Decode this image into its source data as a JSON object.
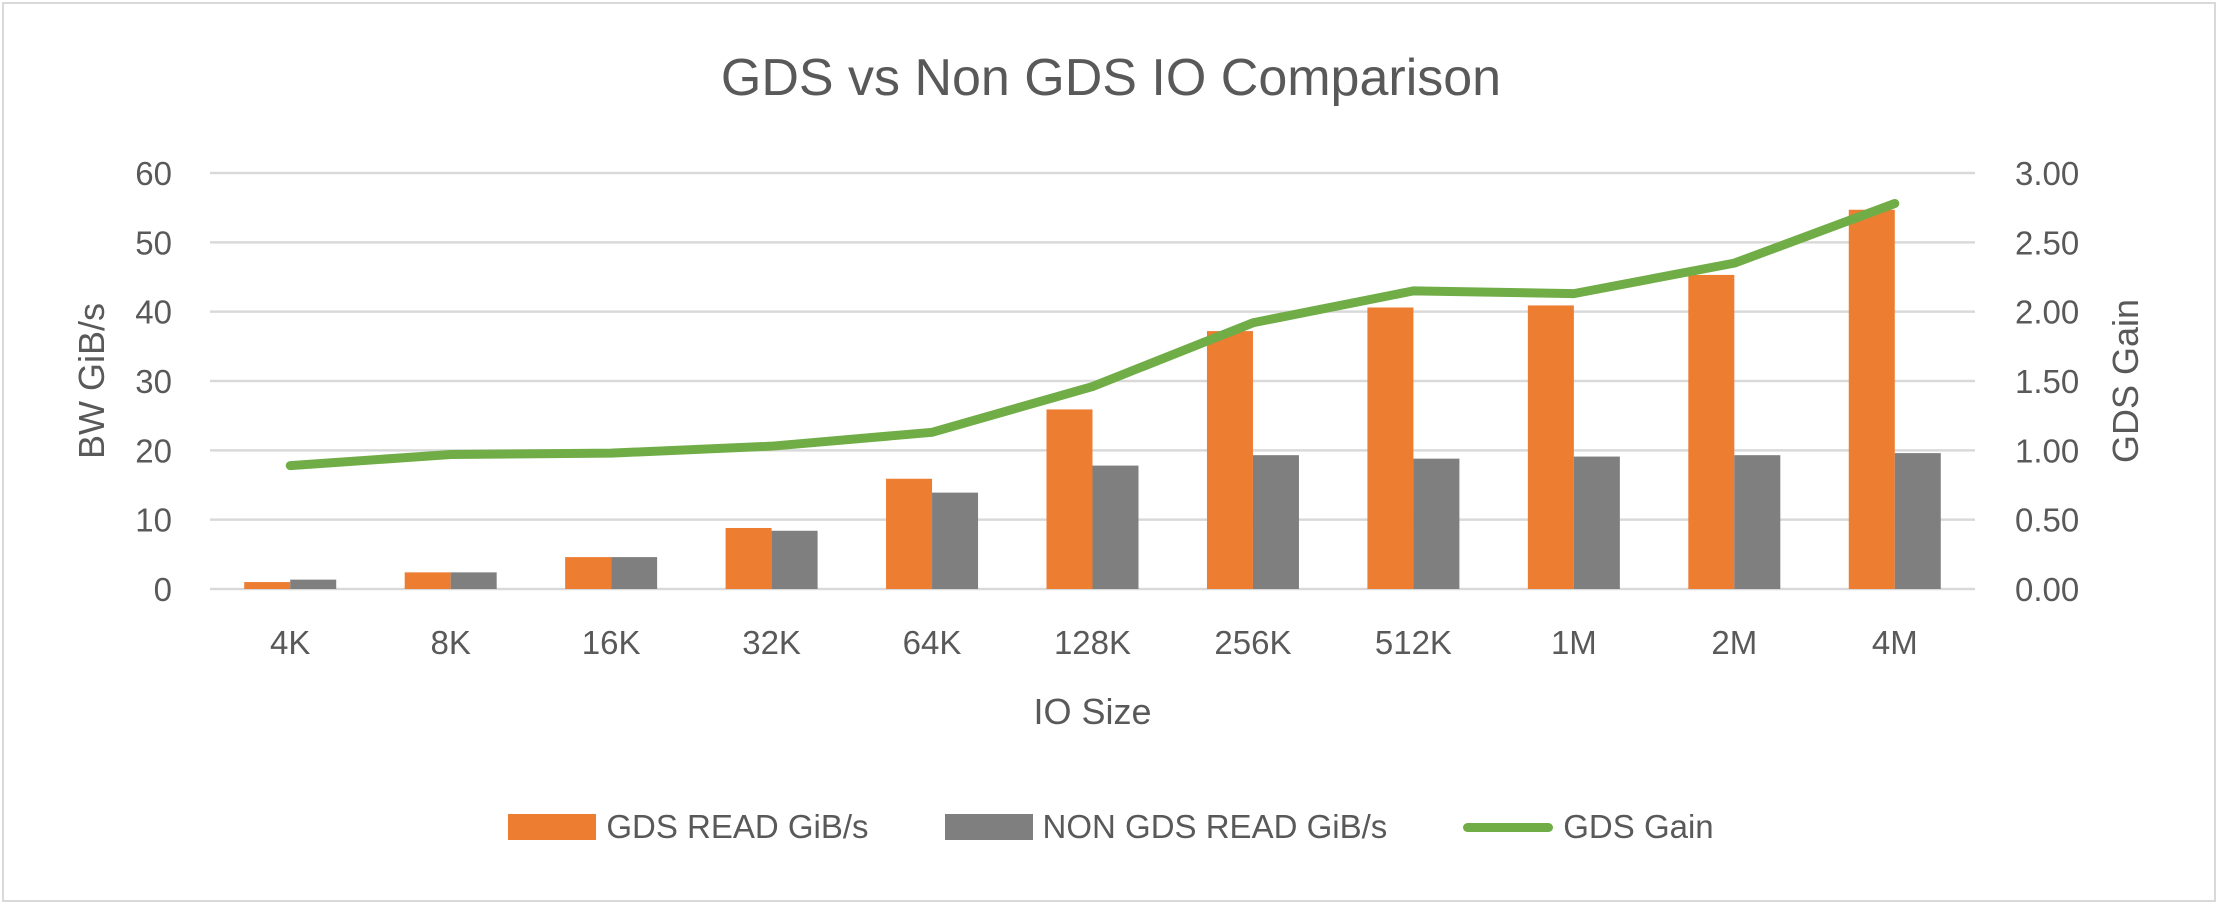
{
  "chart_data": {
    "type": "bar+line",
    "title": "GDS vs Non GDS IO Comparison",
    "xlabel": "IO Size",
    "ylabel": "BW GiB/s",
    "y2label": "GDS Gain",
    "categories": [
      "4K",
      "8K",
      "16K",
      "32K",
      "64K",
      "128K",
      "256K",
      "512K",
      "1M",
      "2M",
      "4M"
    ],
    "ylim": [
      0,
      60
    ],
    "yticks": [
      "0",
      "10",
      "20",
      "30",
      "40",
      "50",
      "60"
    ],
    "y2lim": [
      0,
      3
    ],
    "y2ticks": [
      "0.00",
      "0.50",
      "1.00",
      "1.50",
      "2.00",
      "2.50",
      "3.00"
    ],
    "grid": true,
    "legend_position": "bottom",
    "series": [
      {
        "name": "GDS READ GiB/s",
        "type": "bar",
        "axis": "left",
        "color": "#ED7D31",
        "values": [
          1.0,
          2.4,
          4.6,
          8.8,
          15.9,
          25.9,
          37.2,
          40.6,
          40.9,
          45.3,
          54.7
        ]
      },
      {
        "name": "NON GDS READ GiB/s",
        "type": "bar",
        "axis": "left",
        "color": "#7F7F7F",
        "values": [
          1.35,
          2.4,
          4.6,
          8.4,
          13.9,
          17.8,
          19.3,
          18.8,
          19.1,
          19.3,
          19.6
        ]
      },
      {
        "name": "GDS Gain",
        "type": "line",
        "axis": "right",
        "color": "#70AD47",
        "values": [
          0.89,
          0.97,
          0.98,
          1.03,
          1.13,
          1.46,
          1.92,
          2.15,
          2.13,
          2.35,
          2.78
        ]
      }
    ]
  },
  "colors": {
    "text": "#595959",
    "grid": "#d9d9d9",
    "border": "#d9d9d9"
  }
}
